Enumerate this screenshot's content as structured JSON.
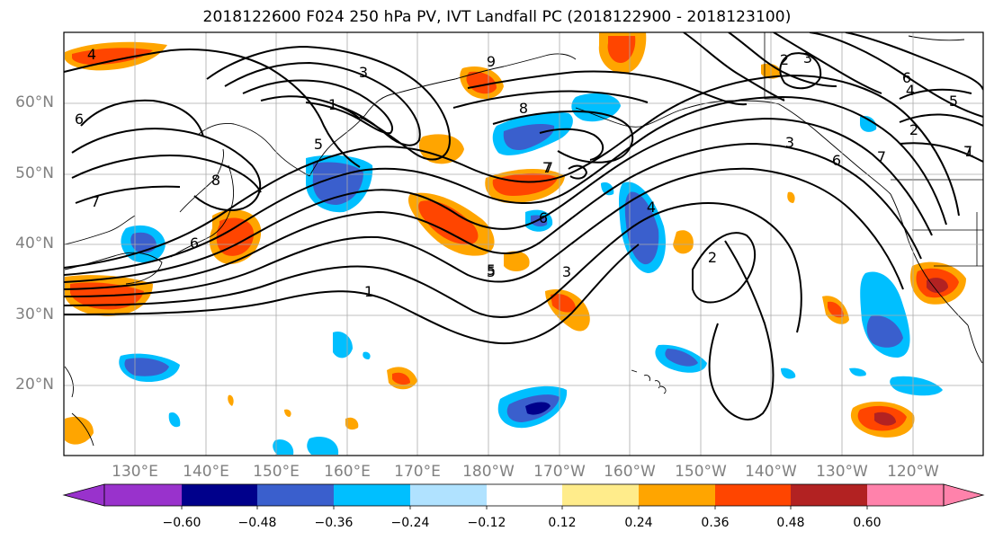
{
  "title": "2018122600 F024 250 hPa PV, IVT Landfall PC (2018122900 - 2018123100)",
  "lat_labels": [
    "60°N",
    "50°N",
    "40°N",
    "30°N",
    "20°N"
  ],
  "lon_labels": [
    "130°E",
    "140°E",
    "150°E",
    "160°E",
    "170°E",
    "180°W",
    "170°W",
    "160°W",
    "150°W",
    "140°W",
    "130°W",
    "120°W"
  ],
  "colorbar": {
    "ticks": [
      "−0.60",
      "−0.48",
      "−0.36",
      "−0.24",
      "−0.12",
      "0.12",
      "0.24",
      "0.36",
      "0.48",
      "0.60"
    ],
    "colors": [
      "#9932cc",
      "#00008b",
      "#3a5fcd",
      "#00bfff",
      "#b0e2ff",
      "#ffffff",
      "#ffec8b",
      "#ffa500",
      "#ff4500",
      "#b22222",
      "#ff82ab"
    ]
  },
  "pv_contour_labels": [
    "4",
    "3",
    "1",
    "6",
    "7",
    "8",
    "8",
    "5",
    "6",
    "7",
    "9",
    "2",
    "3",
    "5",
    "4",
    "6",
    "7",
    "3",
    "2",
    "6",
    "4",
    "5",
    "7",
    "6",
    "5",
    "3",
    "2",
    "1",
    "7",
    "1"
  ]
}
